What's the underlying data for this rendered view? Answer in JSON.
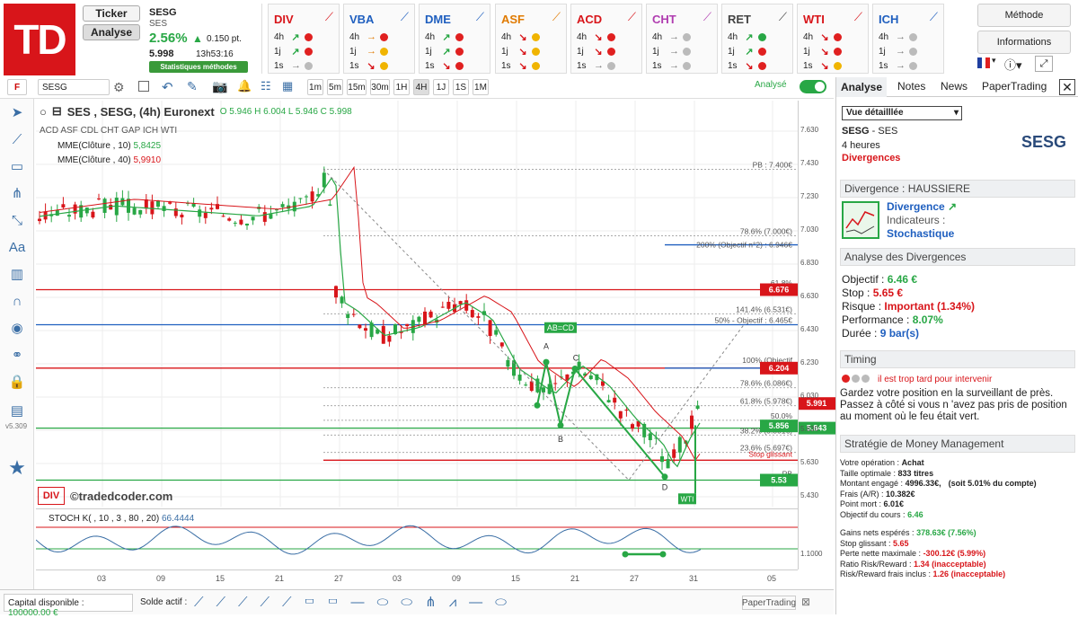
{
  "header": {
    "logo": "TD",
    "ticker_btn": "Ticker",
    "analyse_btn": "Analyse",
    "symbol": "SESG",
    "name": "SES",
    "pct": "2.56%",
    "change": "0.150 pt.",
    "price": "5.998",
    "time": "13h53:16",
    "methods_badge": "Statistiques méthodes"
  },
  "strips": [
    {
      "title": "DIV",
      "color": "#d8151a",
      "rows": [
        [
          "↗",
          "r"
        ],
        [
          "↗",
          "r"
        ],
        [
          "→",
          "gr"
        ]
      ]
    },
    {
      "title": "VBA",
      "color": "#1f5fbf",
      "rows": [
        [
          "→",
          "r"
        ],
        [
          "→",
          "y"
        ],
        [
          "↘",
          "y"
        ]
      ]
    },
    {
      "title": "DME",
      "color": "#1f5fbf",
      "rows": [
        [
          "↗",
          "r"
        ],
        [
          "↗",
          "r"
        ],
        [
          "↘",
          "r"
        ]
      ]
    },
    {
      "title": "ASF",
      "color": "#e07a00",
      "rows": [
        [
          "↘",
          "y"
        ],
        [
          "↘",
          "y"
        ],
        [
          "↘",
          "y"
        ]
      ]
    },
    {
      "title": "ACD",
      "color": "#d8151a",
      "rows": [
        [
          "↘",
          "r"
        ],
        [
          "↘",
          "r"
        ],
        [
          "→",
          "gr"
        ]
      ]
    },
    {
      "title": "CHT",
      "color": "#b03cb0",
      "rows": [
        [
          "→",
          "gr"
        ],
        [
          "→",
          "gr"
        ],
        [
          "→",
          "gr"
        ]
      ]
    },
    {
      "title": "RET",
      "color": "#444",
      "rows": [
        [
          "↗",
          "g"
        ],
        [
          "↗",
          "r"
        ],
        [
          "↘",
          "r"
        ]
      ]
    },
    {
      "title": "WTI",
      "color": "#d8151a",
      "rows": [
        [
          "↘",
          "r"
        ],
        [
          "↘",
          "r"
        ],
        [
          "↘",
          "y"
        ]
      ]
    },
    {
      "title": "ICH",
      "color": "#1f5fbf",
      "rows": [
        [
          "→",
          "gr"
        ],
        [
          "→",
          "gr"
        ],
        [
          "→",
          "gr"
        ]
      ]
    }
  ],
  "periods": [
    "4h",
    "1j",
    "1s"
  ],
  "right_buttons": {
    "methode": "Méthode",
    "informations": "Informations"
  },
  "toolbar": {
    "f": "F",
    "symbol": "SESG",
    "timeframes": [
      "1m",
      "5m",
      "15m",
      "30m",
      "1H",
      "4H",
      "1J",
      "1S",
      "1M"
    ],
    "analyse_toggle": "Analysé"
  },
  "chart": {
    "title": "SES , SESG, (4h) Euronext",
    "ohlc": "O 5.946 H 6.004 L 5.946 C 5.998",
    "methods": "ACD ASF CDL CHT GAP ICH WTI",
    "mme10_label": "MME(Clôture , 10)",
    "mme10_val": "5,8425",
    "mme40_label": "MME(Clôture , 40)",
    "mme40_val": "5,9910",
    "watermark": "©tradedcoder.com",
    "div_badge": "DIV",
    "y_ticks": [
      "7.630",
      "7.430",
      "7.230",
      "7.030",
      "6.830",
      "6.630",
      "6.430",
      "6.230",
      "6.030",
      "5.830",
      "5.630",
      "5.430"
    ],
    "x_ticks": [
      "03",
      "09",
      "15",
      "21",
      "27",
      "03",
      "09",
      "15",
      "21",
      "27",
      "31",
      "05"
    ],
    "fib": [
      "PB : 7.400€",
      "78.6% (7.000€)",
      "200% (Objectif n°2) : 6.946€",
      "61.8%",
      "141.4% (6.531€)",
      "50% - Objectif : 6.465€",
      "100% (Objectif",
      "78.6% (6.086€)",
      "61.8% (5.978€)",
      "50.0%",
      "38.2% (5.801€)",
      "23.6% (5.697€)",
      "Stop glissant",
      "PB"
    ],
    "badges": {
      "r1": "6.676",
      "r2": "6.204",
      "g1": "5.856",
      "g2": "5.53",
      "cur": "5.991",
      "g3": "5.843"
    },
    "pattern": {
      "abcd": "AB=CD",
      "a": "A",
      "b": "B",
      "c": "C",
      "d": "D",
      "wti": "WTI"
    },
    "stoch_label": "STOCH K( , 10 , 3 , 80 , 20)",
    "stoch_val": "66.4444",
    "stoch_axis": "1.1000",
    "version": "v5.309"
  },
  "bottom": {
    "capital_label": "Capital disponible :",
    "capital_val": "100000.00 €",
    "solde_label": "Solde actif :",
    "papertrading": "PaperTrading"
  },
  "panel": {
    "tabs": [
      "Analyse",
      "Notes",
      "News",
      "PaperTrading"
    ],
    "select": "Vue détailllée",
    "sym": "SESG",
    "name": "SES",
    "hours": "4 heures",
    "method": "Divergences",
    "logo": "SESG",
    "div_head": "Divergence : HAUSSIERE",
    "div_link": "Divergence",
    "indic_label": "Indicateurs :",
    "indic_val": "Stochastique",
    "ana_head": "Analyse des Divergences",
    "objectif_l": "Objectif :",
    "objectif_v": "6.46 €",
    "stop_l": "Stop :",
    "stop_v": "5.65 €",
    "risque_l": "Risque :",
    "risque_v": "Important (1.34%)",
    "perf_l": "Performance :",
    "perf_v": "8.07%",
    "duree_l": "Durée :",
    "duree_v": "9 bar(s)",
    "timing_head": "Timing",
    "timing_warn": "il est trop tard pour intervenir",
    "timing_text": "Gardez votre position en la surveillant de près. Passez à côté si vous n 'avez pas pris de position au moment où le feu était vert.",
    "mm_head": "Stratégie de Money Management",
    "mm": [
      [
        "Votre opération :",
        "Achat",
        ""
      ],
      [
        "Taille optimale :",
        "833 titres",
        ""
      ],
      [
        "Montant engagé :",
        "4996.33€,",
        "(soit 5.01% du compte)"
      ],
      [
        "Frais (A/R) :",
        "10.382€",
        ""
      ],
      [
        "Point mort :",
        "6.01€",
        ""
      ],
      [
        "Objectif du cours :",
        "6.46",
        ""
      ]
    ],
    "mm2": [
      [
        "Gains nets espérés :",
        "378.63€ (7.56%)"
      ],
      [
        "Stop glissant :",
        "5.65"
      ],
      [
        "Perte nette maximale :",
        "-300.12€ (5.99%)"
      ],
      [
        "Ratio Risk/Reward :",
        "1.34 (inacceptable)"
      ],
      [
        "Risk/Reward frais inclus :",
        "1.26 (inacceptable)"
      ]
    ]
  }
}
